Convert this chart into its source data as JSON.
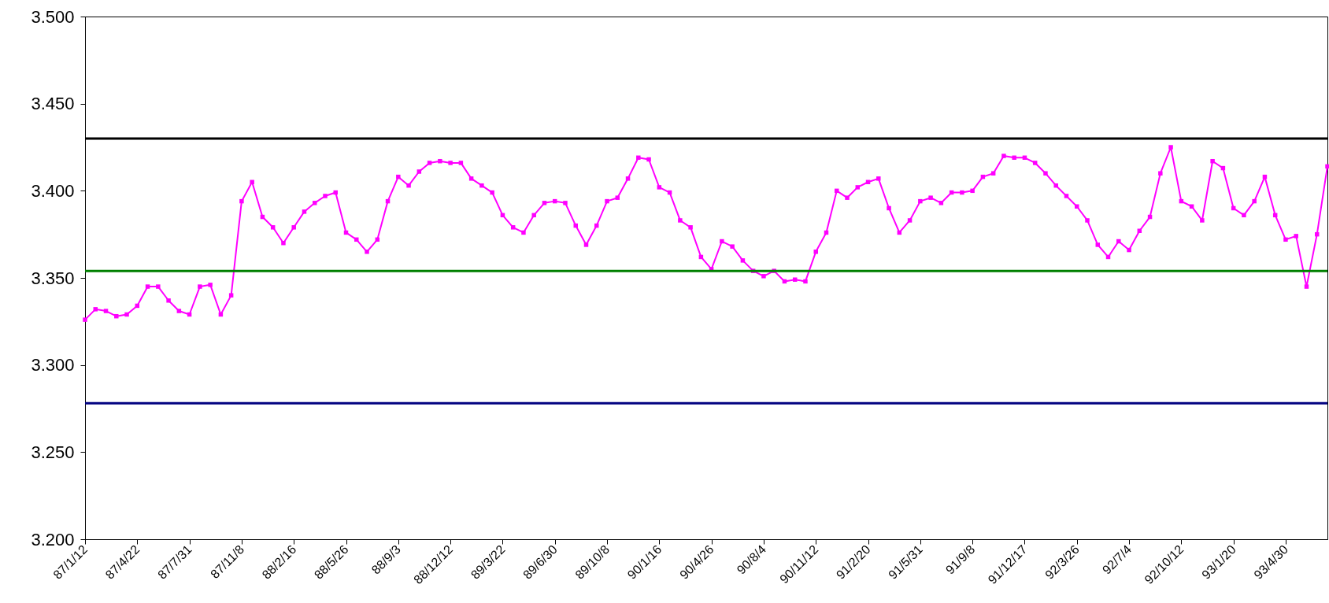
{
  "chart_data": {
    "type": "line",
    "categories": [
      "87/1/12",
      null,
      null,
      null,
      null,
      "87/4/22",
      null,
      null,
      null,
      null,
      "87/7/31",
      null,
      null,
      null,
      null,
      "87/11/8",
      null,
      null,
      null,
      null,
      "88/2/16",
      null,
      null,
      null,
      null,
      "88/5/26",
      null,
      null,
      null,
      null,
      "88/9/3",
      null,
      null,
      null,
      null,
      "88/12/12",
      null,
      null,
      null,
      null,
      "89/3/22",
      null,
      null,
      null,
      null,
      "89/6/30",
      null,
      null,
      null,
      null,
      "89/10/8",
      null,
      null,
      null,
      null,
      "90/1/16",
      null,
      null,
      null,
      null,
      "90/4/26",
      null,
      null,
      null,
      null,
      "90/8/4",
      null,
      null,
      null,
      null,
      "90/11/12",
      null,
      null,
      null,
      null,
      "91/2/20",
      null,
      null,
      null,
      null,
      "91/5/31",
      null,
      null,
      null,
      null,
      "91/9/8",
      null,
      null,
      null,
      null,
      "91/12/17",
      null,
      null,
      null,
      null,
      "92/3/26",
      null,
      null,
      null,
      null,
      "92/7/4",
      null,
      null,
      null,
      null,
      "92/10/12",
      null,
      null,
      null,
      null,
      "93/1/20",
      null,
      null,
      null,
      null,
      "93/4/30",
      null,
      null,
      null,
      null
    ],
    "series": [
      {
        "color": "#ff00ff",
        "values": [
          3.326,
          3.332,
          3.331,
          3.328,
          3.329,
          3.334,
          3.345,
          3.345,
          3.337,
          3.331,
          3.329,
          3.345,
          3.346,
          3.329,
          3.34,
          3.394,
          3.405,
          3.385,
          3.379,
          3.37,
          3.379,
          3.388,
          3.393,
          3.397,
          3.399,
          3.376,
          3.372,
          3.365,
          3.372,
          3.394,
          3.408,
          3.403,
          3.411,
          3.416,
          3.417,
          3.416,
          3.416,
          3.407,
          3.403,
          3.399,
          3.386,
          3.379,
          3.376,
          3.386,
          3.393,
          3.394,
          3.393,
          3.38,
          3.369,
          3.38,
          3.394,
          3.396,
          3.407,
          3.419,
          3.418,
          3.402,
          3.399,
          3.383,
          3.379,
          3.362,
          3.355,
          3.371,
          3.368,
          3.36,
          3.354,
          3.351,
          3.354,
          3.348,
          3.349,
          3.348,
          3.365,
          3.376,
          3.4,
          3.396,
          3.402,
          3.405,
          3.407,
          3.39,
          3.376,
          3.383,
          3.394,
          3.396,
          3.393,
          3.399,
          3.399,
          3.4,
          3.408,
          3.41,
          3.42,
          3.419,
          3.419,
          3.416,
          3.41,
          3.403,
          3.397,
          3.391,
          3.383,
          3.369,
          3.362,
          3.371,
          3.366,
          3.377,
          3.385,
          3.41,
          3.425,
          3.394,
          3.391,
          3.383,
          3.417,
          3.413,
          3.39,
          3.386,
          3.394,
          3.408,
          3.386,
          3.372,
          3.374,
          3.345,
          3.375,
          3.414
        ]
      }
    ],
    "ylim": [
      3.2,
      3.5
    ],
    "yticks": [
      {
        "value": 3.2,
        "label": "3.200"
      },
      {
        "value": 3.25,
        "label": "3.250"
      },
      {
        "value": 3.3,
        "label": "3.300"
      },
      {
        "value": 3.35,
        "label": "3.350"
      },
      {
        "value": 3.4,
        "label": "3.400"
      },
      {
        "value": 3.45,
        "label": "3.450"
      },
      {
        "value": 3.5,
        "label": "3.500"
      }
    ],
    "ref_lines": [
      {
        "axis": "y",
        "value": 3.43,
        "color": "#000000"
      },
      {
        "axis": "y",
        "value": 3.354,
        "color": "#008000"
      },
      {
        "axis": "y",
        "value": 3.278,
        "color": "#000080"
      }
    ],
    "marker": "square",
    "grid": false
  }
}
